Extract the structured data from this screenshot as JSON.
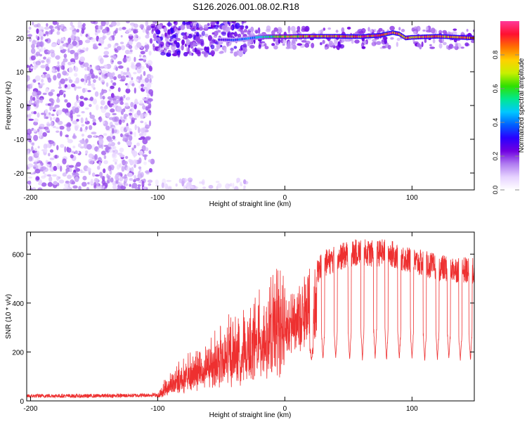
{
  "figure": {
    "title": "S126.2026.001.08.02.R18"
  },
  "chart_data": [
    {
      "type": "heatmap",
      "xlabel": "Height of straight line (km)",
      "ylabel": "Frequency (Hz)",
      "xlim": [
        -203,
        149
      ],
      "ylim": [
        -25,
        25
      ],
      "xticks": [
        -200,
        -100,
        0,
        100
      ],
      "yticks": [
        -20,
        -10,
        0,
        10,
        20
      ],
      "colorbar": {
        "label": "Normalized spectral amplitude",
        "range": [
          0,
          1
        ],
        "ticks": [
          0.0,
          0.2,
          0.4,
          0.6,
          0.8
        ],
        "colormap": [
          "#ffffff",
          "#e6d2ff",
          "#b07cf0",
          "#7000e0",
          "#2a00ff",
          "#0060ff",
          "#00c8ff",
          "#00e890",
          "#30e000",
          "#c8f000",
          "#ffd000",
          "#ff7000",
          "#ff1030",
          "#ff3a9a"
        ]
      },
      "regions": [
        {
          "x": [
            -203,
            -104
          ],
          "freq": [
            -25,
            25
          ],
          "amplitude": [
            0.05,
            0.2
          ],
          "pattern": "scattered speckle"
        },
        {
          "x": [
            -104,
            -30
          ],
          "freq": [
            15,
            25
          ],
          "amplitude": [
            0.1,
            0.3
          ],
          "pattern": "dense patches"
        },
        {
          "x": [
            -104,
            -30
          ],
          "freq": [
            -25,
            -22
          ],
          "amplitude": [
            0.05,
            0.12
          ],
          "pattern": "sparse speckle"
        },
        {
          "x": [
            -30,
            149
          ],
          "freq": [
            17,
            23
          ],
          "amplitude": [
            0.1,
            0.25
          ],
          "pattern": "band envelope"
        }
      ],
      "ridge": {
        "x": [
          -52,
          -40,
          -30,
          -20,
          -10,
          0,
          20,
          40,
          60,
          75,
          80,
          85,
          90,
          95,
          100,
          120,
          149
        ],
        "freq": [
          19.5,
          19.4,
          19.8,
          20.3,
          20.4,
          20.4,
          20.5,
          20.5,
          20.4,
          20.8,
          21.2,
          21.6,
          21.2,
          20.0,
          20.2,
          20.5,
          20.0
        ],
        "amplitude": [
          0.3,
          0.35,
          0.4,
          0.5,
          0.6,
          0.7,
          0.85,
          0.9,
          0.9,
          0.9,
          0.95,
          0.95,
          0.9,
          0.85,
          0.85,
          0.9,
          0.85
        ]
      }
    },
    {
      "type": "line",
      "xlabel": "Height of straight line (km)",
      "ylabel": "SNR (10 * v/v)",
      "xlim": [
        -203,
        149
      ],
      "ylim": [
        0,
        690
      ],
      "xticks": [
        -200,
        -100,
        0,
        100
      ],
      "yticks": [
        0,
        200,
        400,
        600
      ],
      "color": "#ee3030",
      "series": [
        {
          "x": [
            -203,
            -180,
            -160,
            -140,
            -120,
            -100,
            -90,
            -80,
            -70,
            -60,
            -50,
            -40,
            -30,
            -20,
            -10,
            0,
            10,
            20,
            30,
            40,
            50,
            60,
            70,
            80,
            90,
            100,
            110,
            120,
            130,
            140,
            149
          ],
          "values": [
            20,
            21,
            20,
            21,
            22,
            25,
            90,
            120,
            150,
            180,
            210,
            250,
            280,
            320,
            360,
            400,
            430,
            500,
            560,
            580,
            600,
            610,
            600,
            610,
            590,
            570,
            560,
            545,
            540,
            535,
            530
          ],
          "dips": [
            {
              "x": 21,
              "min": 160
            },
            {
              "x": 30,
              "min": 165
            },
            {
              "x": 40,
              "min": 170
            },
            {
              "x": 51,
              "min": 160
            },
            {
              "x": 61,
              "min": 165
            },
            {
              "x": 71,
              "min": 170
            },
            {
              "x": 80,
              "min": 160
            },
            {
              "x": 90,
              "min": 165
            },
            {
              "x": 100,
              "min": 170
            },
            {
              "x": 110,
              "min": 160
            },
            {
              "x": 120,
              "min": 165
            },
            {
              "x": 129,
              "min": 170
            },
            {
              "x": 138,
              "min": 160
            },
            {
              "x": 146,
              "min": 165
            }
          ]
        }
      ]
    }
  ]
}
